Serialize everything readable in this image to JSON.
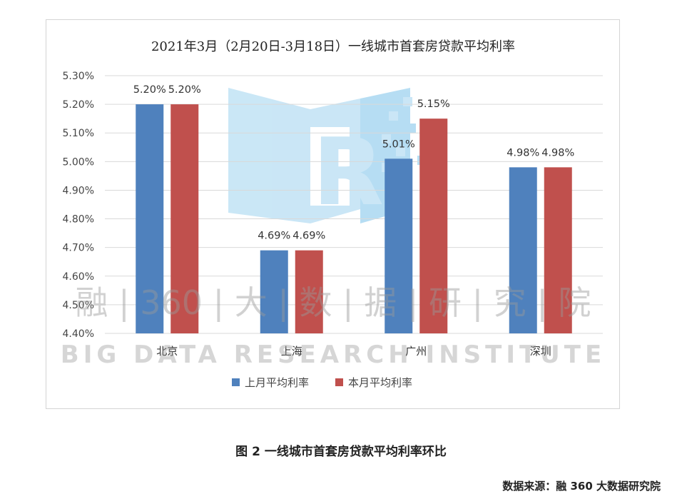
{
  "chart_data": {
    "type": "bar",
    "title": "2021年3月（2月20日-3月18日）一线城市首套房贷款平均利率",
    "categories": [
      "北京",
      "上海",
      "广州",
      "深圳"
    ],
    "series": [
      {
        "name": "上月平均利率",
        "values": [
          5.2,
          4.69,
          5.01,
          4.98
        ],
        "labels": [
          "5.20%",
          "4.69%",
          "5.01%",
          "4.98%"
        ],
        "color": "#4f81bd"
      },
      {
        "name": "本月平均利率",
        "values": [
          5.2,
          4.69,
          5.15,
          4.98
        ],
        "labels": [
          "5.20%",
          "4.69%",
          "5.15%",
          "4.98%"
        ],
        "color": "#c0504d"
      }
    ],
    "ylim": [
      4.4,
      5.3
    ],
    "yticks": [
      "4.40%",
      "4.50%",
      "4.60%",
      "4.70%",
      "4.80%",
      "4.90%",
      "5.00%",
      "5.10%",
      "5.20%",
      "5.30%"
    ],
    "grid": true,
    "legend": "bottom"
  },
  "watermark": {
    "text_cn": "融 | 360 | 大 | 数 | 据 | 研 | 究 | 院",
    "text_en": "BIG DATA RESEARCH INSTITUTE"
  },
  "caption": "图 2  一线城市首套房贷款平均利率环比",
  "source": "数据来源：融 360 大数据研究院"
}
